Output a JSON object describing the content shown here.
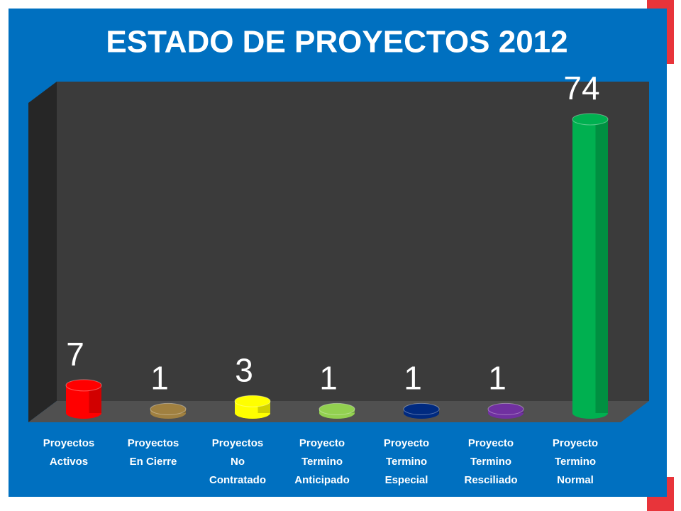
{
  "chart_data": {
    "type": "bar3d",
    "title": "ESTADO DE PROYECTOS 2012",
    "categories": [
      "Proyectos Activos",
      "Proyectos En Cierre",
      "Proyectos No Contratado",
      "Proyecto Termino Anticipado",
      "Proyecto Termino Especial",
      "Proyecto Termino Resciliado",
      "Proyecto Termino Normal"
    ],
    "values": [
      7,
      1,
      3,
      1,
      1,
      1,
      74
    ],
    "colors": [
      "#ff0000",
      "#a08040",
      "#ffff00",
      "#92d050",
      "#002a80",
      "#7030a0",
      "#00b050"
    ]
  }
}
